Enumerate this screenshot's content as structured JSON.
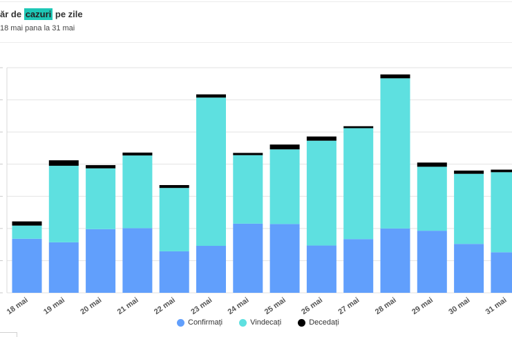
{
  "header": {
    "title_prefix": "ăr de ",
    "title_highlight": "cazuri",
    "title_suffix": " pe zile",
    "subtitle": "18 mai pana la 31 mai"
  },
  "colors": {
    "confirmati": "#619ffc",
    "vindecati": "#5ee0e0",
    "decedati": "#000000",
    "highlight": "#1ec7b6"
  },
  "chart_data": {
    "type": "bar",
    "stacked": true,
    "title": "ăr de cazuri pe zile",
    "subtitle": "18 mai pana la 31 mai",
    "categories": [
      "18 mai",
      "19 mai",
      "20 mai",
      "21 mai",
      "22 mai",
      "23 mai",
      "24 mai",
      "25 mai",
      "26 mai",
      "27 mai",
      "28 mai",
      "29 mai",
      "30 mai",
      "31 mai"
    ],
    "series": [
      {
        "name": "Confirmați",
        "values": [
          168,
          157,
          198,
          201,
          129,
          146,
          215,
          214,
          147,
          167,
          200,
          193,
          152,
          126
        ]
      },
      {
        "name": "Vindecați",
        "values": [
          41,
          238,
          189,
          226,
          197,
          461,
          213,
          232,
          326,
          345,
          467,
          199,
          218,
          249
        ]
      },
      {
        "name": "Decedați",
        "values": [
          13,
          17,
          10,
          9,
          9,
          10,
          7,
          15,
          13,
          6,
          12,
          13,
          10,
          8
        ]
      }
    ],
    "ylim": [
      0,
      700
    ],
    "grid": true,
    "legend": "bottom-center"
  }
}
